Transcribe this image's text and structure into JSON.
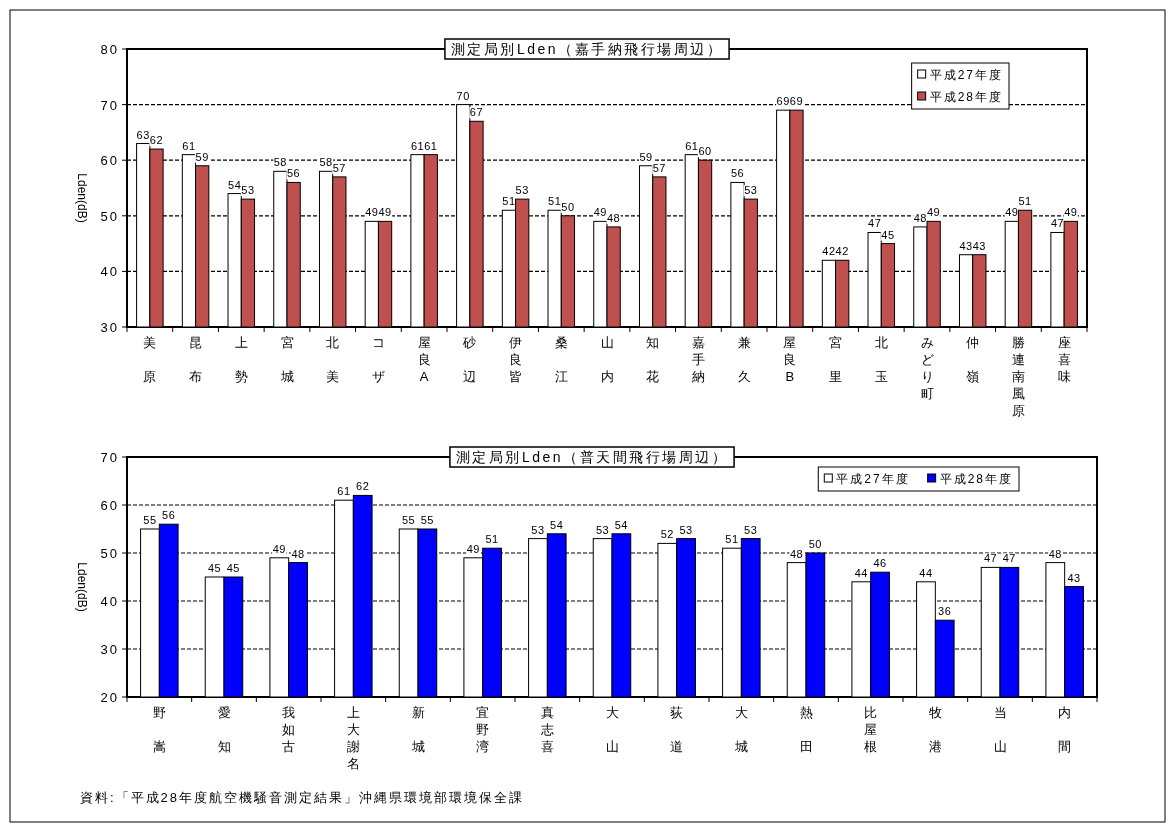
{
  "chart_data": [
    {
      "type": "bar",
      "title": "測定局別Lden（嘉手納飛行場周辺）",
      "ylabel": "Lden(dB)",
      "categories": [
        "美原",
        "昆布",
        "上勢",
        "宮城",
        "北美",
        "コザ",
        "屋良A",
        "砂辺",
        "伊良皆",
        "桑江",
        "山内",
        "知花",
        "嘉手納",
        "兼久",
        "屋良B",
        "宮里",
        "北玉",
        "みどり町",
        "仲嶺",
        "勝連南風原",
        "座喜味"
      ],
      "series": [
        {
          "name": "平成27年度",
          "color": "#ffffff",
          "values": [
            63,
            61,
            54,
            58,
            58,
            49,
            61,
            70,
            51,
            51,
            49,
            59,
            61,
            56,
            69,
            42,
            47,
            48,
            43,
            49,
            47
          ]
        },
        {
          "name": "平成28年度",
          "color": "#c0504d",
          "values": [
            62,
            59,
            53,
            56,
            57,
            49,
            61,
            67,
            53,
            50,
            48,
            57,
            60,
            53,
            69,
            42,
            45,
            49,
            43,
            51,
            49
          ]
        }
      ],
      "ylim": [
        30,
        80
      ],
      "yticks": [
        30,
        40,
        50,
        60,
        70,
        80
      ],
      "grid": "y",
      "legend": "top right",
      "data_labels": true
    },
    {
      "type": "bar",
      "title": "測定局別Lden（普天間飛行場周辺）",
      "ylabel": "Lden(dB)",
      "categories": [
        "野嵩",
        "愛知",
        "我如古",
        "上大謝名",
        "新城",
        "宜野湾",
        "真志喜",
        "大山",
        "荻道",
        "大城",
        "熱田",
        "比屋根",
        "牧港",
        "当山",
        "内間"
      ],
      "series": [
        {
          "name": "平成27年度",
          "color": "#ffffff",
          "values": [
            55,
            45,
            49,
            61,
            55,
            49,
            53,
            53,
            52,
            51,
            48,
            44,
            44,
            47,
            48
          ]
        },
        {
          "name": "平成28年度",
          "color": "#0000ff",
          "values": [
            56,
            45,
            48,
            62,
            55,
            51,
            54,
            54,
            53,
            53,
            50,
            46,
            36,
            47,
            43
          ]
        }
      ],
      "ylim": [
        20,
        70
      ],
      "yticks": [
        20,
        30,
        40,
        50,
        60,
        70
      ],
      "grid": "y",
      "legend": "top right",
      "data_labels": true,
      "annotations": [
        "資料:「平成28年度航空機騒音測定結果」沖縄県環境部環境保全課"
      ]
    }
  ]
}
